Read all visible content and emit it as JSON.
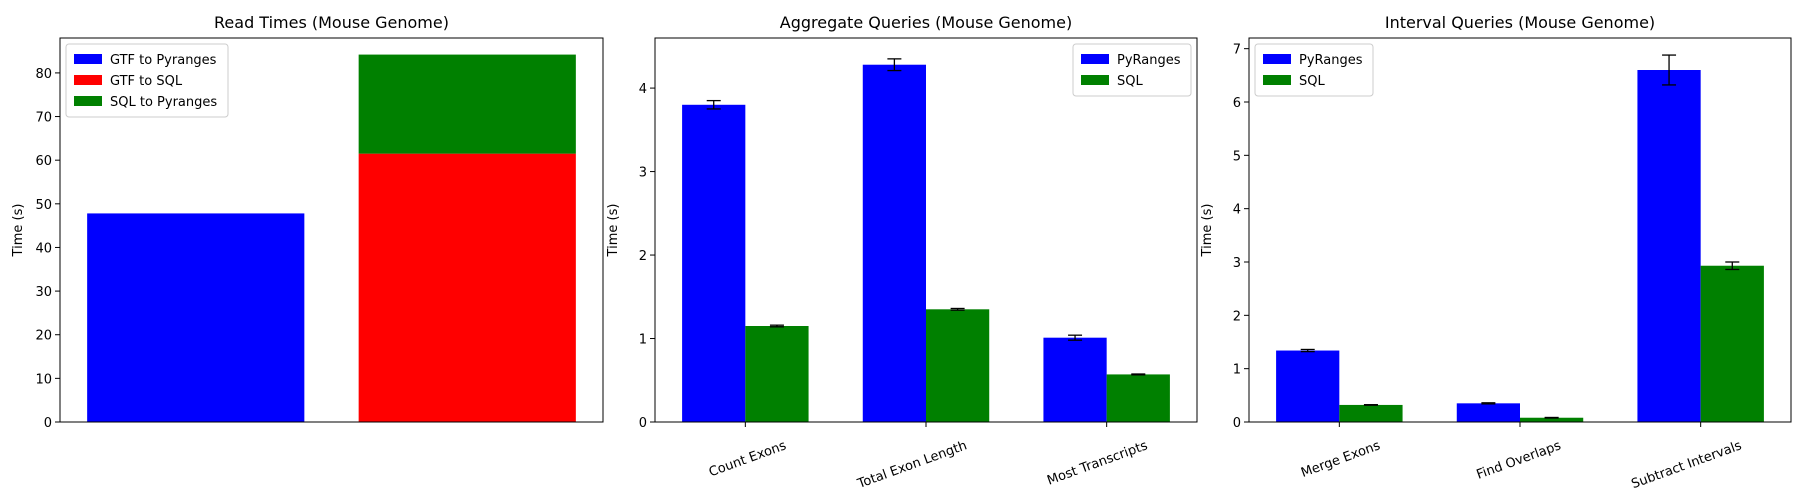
{
  "chart_data": [
    {
      "type": "bar",
      "stacked": true,
      "title": "Read Times (Mouse Genome)",
      "xlabel": "",
      "ylabel": "Time (s)",
      "ylim": [
        0,
        88
      ],
      "yticks": [
        0,
        10,
        20,
        30,
        40,
        50,
        60,
        70,
        80
      ],
      "categories": [
        "",
        ""
      ],
      "series": [
        {
          "name": "GTF to Pyranges",
          "color": "#0000ff",
          "values": [
            47.8,
            0
          ]
        },
        {
          "name": "GTF to SQL",
          "color": "#ff0000",
          "values": [
            0,
            61.5
          ]
        },
        {
          "name": "SQL to Pyranges",
          "color": "#008000",
          "values": [
            0,
            22.7
          ]
        }
      ],
      "legend": "top-left",
      "grid": false
    },
    {
      "type": "bar",
      "title": "Aggregate Queries (Mouse Genome)",
      "xlabel": "",
      "ylabel": "Time (s)",
      "ylim": [
        0,
        4.6
      ],
      "yticks": [
        0,
        1,
        2,
        3,
        4
      ],
      "categories": [
        "Count Exons",
        "Total Exon Length",
        "Most Transcripts"
      ],
      "series": [
        {
          "name": "PyRanges",
          "color": "#0000ff",
          "values": [
            3.8,
            4.28,
            1.01
          ],
          "errors": [
            0.05,
            0.07,
            0.03
          ]
        },
        {
          "name": "SQL",
          "color": "#008000",
          "values": [
            1.15,
            1.35,
            0.57
          ],
          "errors": [
            0.01,
            0.01,
            0.005
          ]
        }
      ],
      "legend": "top-right",
      "grid": false
    },
    {
      "type": "bar",
      "title": "Interval Queries (Mouse Genome)",
      "xlabel": "",
      "ylabel": "Time (s)",
      "ylim": [
        0,
        7.2
      ],
      "yticks": [
        0,
        1,
        2,
        3,
        4,
        5,
        6,
        7
      ],
      "categories": [
        "Merge Exons",
        "Find Overlaps",
        "Subtract Intervals"
      ],
      "series": [
        {
          "name": "PyRanges",
          "color": "#0000ff",
          "values": [
            1.34,
            0.35,
            6.6
          ],
          "errors": [
            0.02,
            0.01,
            0.28
          ]
        },
        {
          "name": "SQL",
          "color": "#008000",
          "values": [
            0.32,
            0.08,
            2.93
          ],
          "errors": [
            0.005,
            0.005,
            0.07
          ]
        }
      ],
      "legend": "top-left",
      "grid": false
    }
  ]
}
